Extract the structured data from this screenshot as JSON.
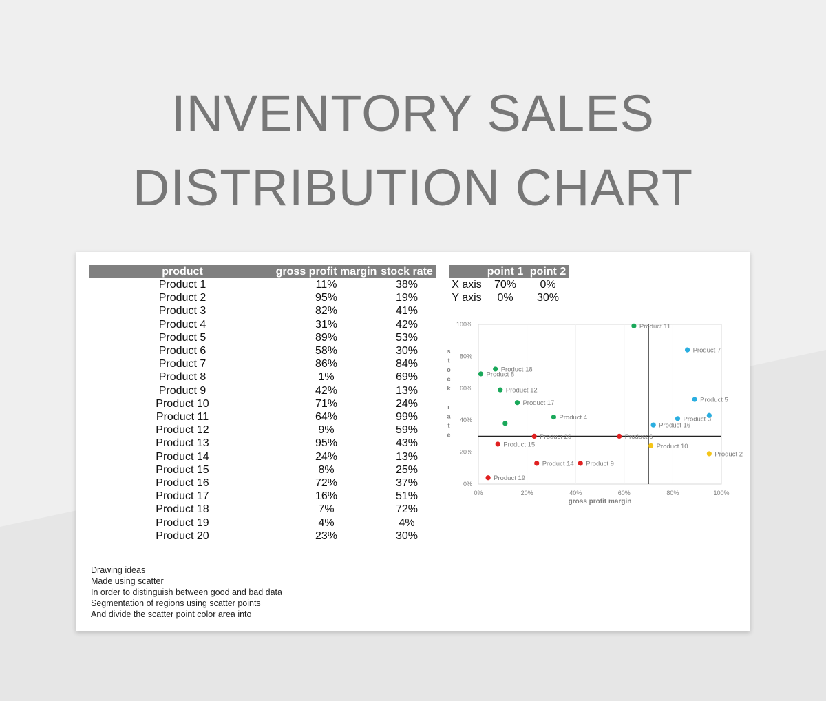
{
  "title": {
    "line1": "INVENTORY SALES",
    "line2": "DISTRIBUTION CHART"
  },
  "table": {
    "headers": [
      "product",
      "gross profit margin",
      "stock rate"
    ],
    "rows": [
      [
        "Product 1",
        "11%",
        "38%"
      ],
      [
        "Product 2",
        "95%",
        "19%"
      ],
      [
        "Product 3",
        "82%",
        "41%"
      ],
      [
        "Product 4",
        "31%",
        "42%"
      ],
      [
        "Product 5",
        "89%",
        "53%"
      ],
      [
        "Product 6",
        "58%",
        "30%"
      ],
      [
        "Product 7",
        "86%",
        "84%"
      ],
      [
        "Product 8",
        "1%",
        "69%"
      ],
      [
        "Product 9",
        "42%",
        "13%"
      ],
      [
        "Product 10",
        "71%",
        "24%"
      ],
      [
        "Product 11",
        "64%",
        "99%"
      ],
      [
        "Product 12",
        "9%",
        "59%"
      ],
      [
        "Product 13",
        "95%",
        "43%"
      ],
      [
        "Product 14",
        "24%",
        "13%"
      ],
      [
        "Product 15",
        "8%",
        "25%"
      ],
      [
        "Product 16",
        "72%",
        "37%"
      ],
      [
        "Product 17",
        "16%",
        "51%"
      ],
      [
        "Product 18",
        "7%",
        "72%"
      ],
      [
        "Product 19",
        "4%",
        "4%"
      ],
      [
        "Product 20",
        "23%",
        "30%"
      ]
    ]
  },
  "points_table": {
    "headers": [
      "",
      "point 1",
      "point 2"
    ],
    "rows": [
      [
        "X axis",
        "70%",
        "0%"
      ],
      [
        "Y axis",
        "0%",
        "30%"
      ]
    ]
  },
  "notes": [
    "Drawing ideas",
    "Made using scatter",
    "In order to distinguish between good and bad data",
    "Segmentation of regions using scatter points",
    "And divide the scatter point color area into"
  ],
  "chart_data": {
    "type": "scatter",
    "title": "",
    "xlabel": "gross profit margin",
    "ylabel": "stock rate",
    "xlim": [
      0,
      100
    ],
    "ylim": [
      0,
      100
    ],
    "xticks": [
      "0%",
      "20%",
      "40%",
      "60%",
      "80%",
      "100%"
    ],
    "yticks": [
      "0%",
      "20%",
      "40%",
      "60%",
      "80%",
      "100%"
    ],
    "grid": true,
    "divider_x": 70,
    "divider_y": 30,
    "colors": {
      "green": "#1aa85a",
      "blue": "#2aaee0",
      "red": "#e02020",
      "yellow": "#f5c518"
    },
    "points": [
      {
        "label": "Product 1",
        "x": 11,
        "y": 38,
        "color": "green",
        "show_label": false
      },
      {
        "label": "Product 2",
        "x": 95,
        "y": 19,
        "color": "yellow",
        "show_label": true
      },
      {
        "label": "Product 3",
        "x": 82,
        "y": 41,
        "color": "blue",
        "show_label": true
      },
      {
        "label": "Product 4",
        "x": 31,
        "y": 42,
        "color": "green",
        "show_label": true
      },
      {
        "label": "Product 5",
        "x": 89,
        "y": 53,
        "color": "blue",
        "show_label": true
      },
      {
        "label": "Product 6",
        "x": 58,
        "y": 30,
        "color": "red",
        "show_label": true
      },
      {
        "label": "Product 7",
        "x": 86,
        "y": 84,
        "color": "blue",
        "show_label": true
      },
      {
        "label": "Product 8",
        "x": 1,
        "y": 69,
        "color": "green",
        "show_label": true
      },
      {
        "label": "Product 9",
        "x": 42,
        "y": 13,
        "color": "red",
        "show_label": true
      },
      {
        "label": "Product 10",
        "x": 71,
        "y": 24,
        "color": "yellow",
        "show_label": true
      },
      {
        "label": "Product 11",
        "x": 64,
        "y": 99,
        "color": "green",
        "show_label": true
      },
      {
        "label": "Product 12",
        "x": 9,
        "y": 59,
        "color": "green",
        "show_label": true
      },
      {
        "label": "Product 13",
        "x": 95,
        "y": 43,
        "color": "blue",
        "show_label": false
      },
      {
        "label": "Product 14",
        "x": 24,
        "y": 13,
        "color": "red",
        "show_label": true
      },
      {
        "label": "Product 15",
        "x": 8,
        "y": 25,
        "color": "red",
        "show_label": true
      },
      {
        "label": "Product 16",
        "x": 72,
        "y": 37,
        "color": "blue",
        "show_label": true
      },
      {
        "label": "Product 17",
        "x": 16,
        "y": 51,
        "color": "green",
        "show_label": true
      },
      {
        "label": "Product 18",
        "x": 7,
        "y": 72,
        "color": "green",
        "show_label": true
      },
      {
        "label": "Product 19",
        "x": 4,
        "y": 4,
        "color": "red",
        "show_label": true
      },
      {
        "label": "Product 20",
        "x": 23,
        "y": 30,
        "color": "red",
        "show_label": true
      }
    ]
  }
}
